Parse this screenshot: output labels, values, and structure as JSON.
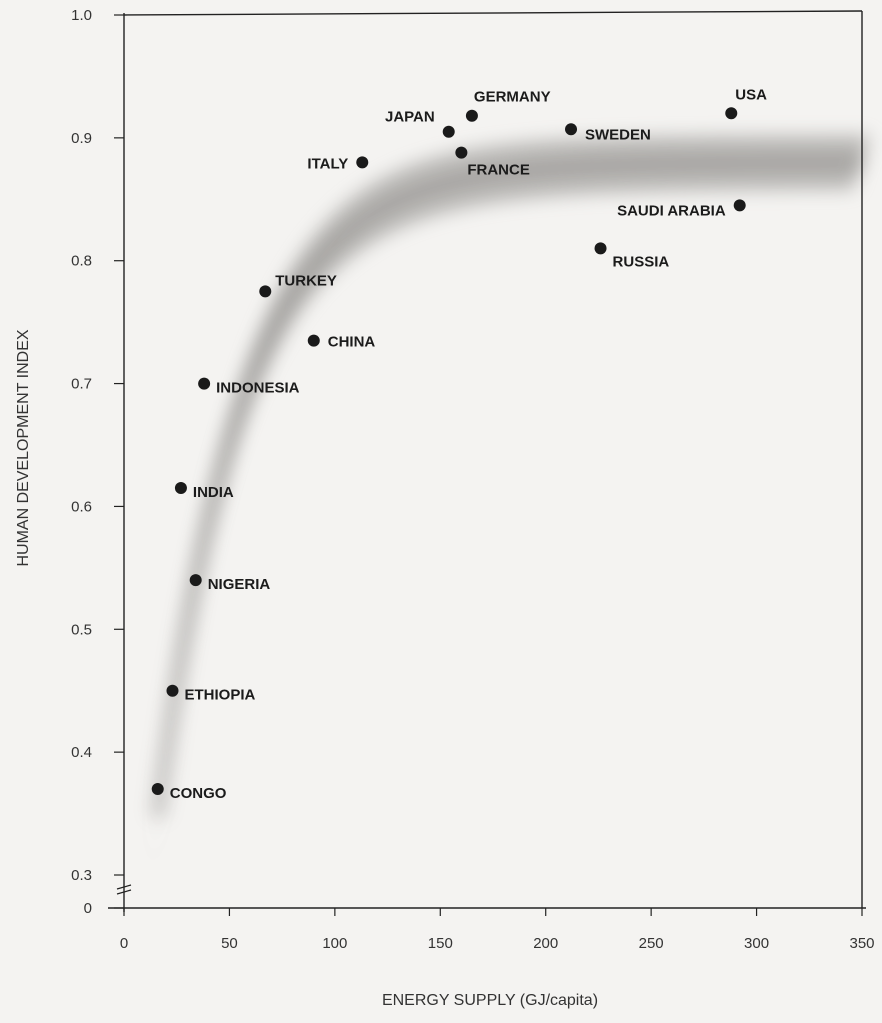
{
  "chart_data": {
    "type": "scatter",
    "xlabel": "ENERGY SUPPLY (GJ/capita)",
    "ylabel": "HUMAN DEVELOPMENT INDEX",
    "xlim": [
      0,
      350
    ],
    "ylim": [
      0.3,
      1.0
    ],
    "x_ticks": [
      0,
      50,
      100,
      150,
      200,
      250,
      300,
      350
    ],
    "y_ticks": [
      0,
      0.3,
      0.4,
      0.5,
      0.6,
      0.7,
      0.8,
      0.9,
      1.0
    ],
    "y_tick_labels": [
      "0",
      "0.3",
      "0.4",
      "0.5",
      "0.6",
      "0.7",
      "0.8",
      "0.9",
      "1.0"
    ],
    "y_axis_break": "0 shown below 0.3",
    "grid": false,
    "trend_band": "shaded curve rising steeply then levelling near 0.88",
    "points": [
      {
        "label": "CONGO",
        "x": 16,
        "y": 0.37
      },
      {
        "label": "ETHIOPIA",
        "x": 23,
        "y": 0.45
      },
      {
        "label": "NIGERIA",
        "x": 34,
        "y": 0.54
      },
      {
        "label": "INDIA",
        "x": 27,
        "y": 0.615
      },
      {
        "label": "INDONESIA",
        "x": 38,
        "y": 0.7
      },
      {
        "label": "TURKEY",
        "x": 67,
        "y": 0.775
      },
      {
        "label": "CHINA",
        "x": 90,
        "y": 0.735
      },
      {
        "label": "ITALY",
        "x": 113,
        "y": 0.88
      },
      {
        "label": "JAPAN",
        "x": 154,
        "y": 0.905
      },
      {
        "label": "GERMANY",
        "x": 165,
        "y": 0.918
      },
      {
        "label": "FRANCE",
        "x": 160,
        "y": 0.888
      },
      {
        "label": "SWEDEN",
        "x": 212,
        "y": 0.907
      },
      {
        "label": "RUSSIA",
        "x": 226,
        "y": 0.81
      },
      {
        "label": "USA",
        "x": 288,
        "y": 0.92
      },
      {
        "label": "SAUDI ARABIA",
        "x": 292,
        "y": 0.845
      }
    ]
  }
}
